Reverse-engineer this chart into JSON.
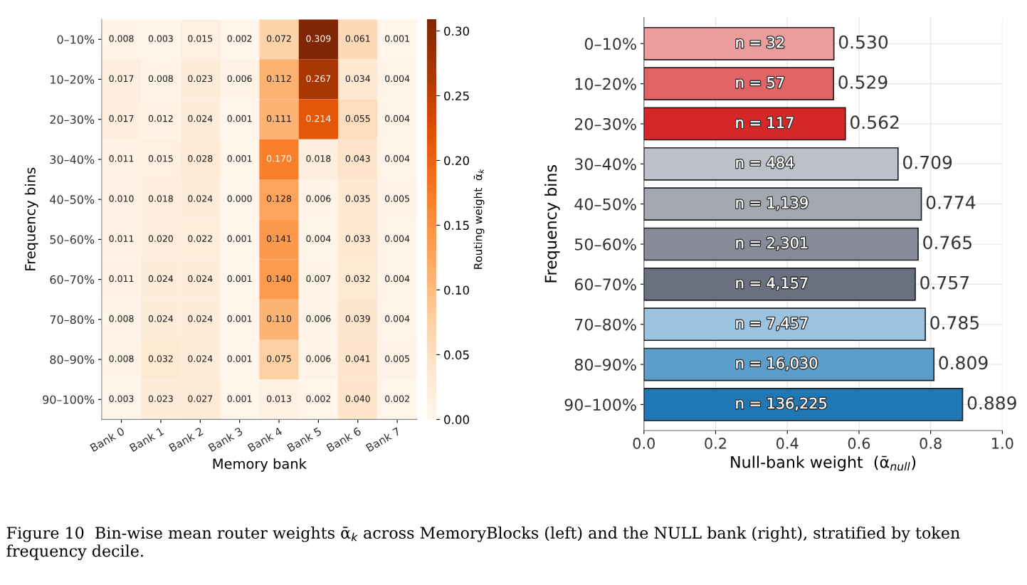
{
  "chart_data": [
    {
      "type": "heatmap",
      "xlabel": "Memory bank",
      "ylabel": "Frequency bins",
      "clabel": "Routing weight  ᾱ$_{k}$",
      "categories": [
        "Bank 0",
        "Bank 1",
        "Bank 2",
        "Bank 3",
        "Bank 4",
        "Bank 5",
        "Bank 6",
        "Bank 7"
      ],
      "y_categories": [
        "0–10%",
        "10–20%",
        "20–30%",
        "30–40%",
        "40–50%",
        "50–60%",
        "60–70%",
        "70–80%",
        "80–90%",
        "90–100%"
      ],
      "cells": [
        [
          0.008,
          0.003,
          0.015,
          0.002,
          0.072,
          0.309,
          0.061,
          0.001
        ],
        [
          0.017,
          0.008,
          0.023,
          0.006,
          0.112,
          0.267,
          0.034,
          0.004
        ],
        [
          0.017,
          0.012,
          0.024,
          0.001,
          0.111,
          0.214,
          0.055,
          0.004
        ],
        [
          0.011,
          0.015,
          0.028,
          0.001,
          0.17,
          0.018,
          0.043,
          0.004
        ],
        [
          0.01,
          0.018,
          0.024,
          0.0,
          0.128,
          0.006,
          0.035,
          0.005
        ],
        [
          0.011,
          0.02,
          0.022,
          0.001,
          0.141,
          0.004,
          0.033,
          0.004
        ],
        [
          0.011,
          0.024,
          0.024,
          0.001,
          0.14,
          0.007,
          0.032,
          0.004
        ],
        [
          0.008,
          0.024,
          0.024,
          0.001,
          0.11,
          0.006,
          0.039,
          0.004
        ],
        [
          0.008,
          0.032,
          0.024,
          0.001,
          0.075,
          0.006,
          0.041,
          0.005
        ],
        [
          0.003,
          0.023,
          0.027,
          0.001,
          0.013,
          0.002,
          0.04,
          0.002
        ]
      ],
      "cell_labels": [
        [
          "0.008",
          "0.003",
          "0.015",
          "0.002",
          "0.072",
          "0.309",
          "0.061",
          "0.001"
        ],
        [
          "0.017",
          "0.008",
          "0.023",
          "0.006",
          "0.112",
          "0.267",
          "0.034",
          "0.004"
        ],
        [
          "0.017",
          "0.012",
          "0.024",
          "0.001",
          "0.111",
          "0.214",
          "0.055",
          "0.004"
        ],
        [
          "0.011",
          "0.015",
          "0.028",
          "0.001",
          "0.170",
          "0.018",
          "0.043",
          "0.004"
        ],
        [
          "0.010",
          "0.018",
          "0.024",
          "0.000",
          "0.128",
          "0.006",
          "0.035",
          "0.005"
        ],
        [
          "0.011",
          "0.020",
          "0.022",
          "0.001",
          "0.141",
          "0.004",
          "0.033",
          "0.004"
        ],
        [
          "0.011",
          "0.024",
          "0.024",
          "0.001",
          "0.140",
          "0.007",
          "0.032",
          "0.004"
        ],
        [
          "0.008",
          "0.024",
          "0.024",
          "0.001",
          "0.110",
          "0.006",
          "0.039",
          "0.004"
        ],
        [
          "0.008",
          "0.032",
          "0.024",
          "0.001",
          "0.075",
          "0.006",
          "0.041",
          "0.005"
        ],
        [
          "0.003",
          "0.023",
          "0.027",
          "0.001",
          "0.013",
          "0.002",
          "0.040",
          "0.002"
        ]
      ],
      "clim": [
        0,
        0.309
      ],
      "cticks": [
        {
          "value": 0,
          "label": "0.00"
        },
        0.05,
        {
          "value": 0.1,
          "label": "0.10"
        },
        0.15,
        {
          "value": 0.2,
          "label": "0.20"
        },
        0.25,
        {
          "value": 0.3,
          "label": "0.30"
        }
      ],
      "annotations": [
        "Figure 10  Bin-wise mean router weights ᾱ$_{k}$ across MemoryBlocks (left) and the NULL bank (right), stratified by token frequency decile."
      ]
    },
    {
      "type": "bar",
      "orientation": "horizontal",
      "xlabel": "Null-bank weight  (ᾱ$_{null}$)",
      "ylabel": "Frequency bins",
      "categories": [
        "0–10%",
        "10–20%",
        "20–30%",
        "30–40%",
        "40–50%",
        "50–60%",
        "60–70%",
        "70–80%",
        "80–90%",
        "90–100%"
      ],
      "values": [
        0.53,
        0.529,
        0.562,
        0.709,
        0.774,
        0.765,
        0.757,
        0.785,
        0.809,
        0.889
      ],
      "colors": [
        "#eb9c9d",
        "#e06465",
        "#d62728",
        "#bcc0c8",
        "#a3a7b0",
        "#878b97",
        "#6b7080",
        "#9bc2df",
        "#5c9dc9",
        "#1f77b4"
      ],
      "value_labels": [
        "0.530",
        "0.529",
        "0.562",
        "0.709",
        "0.774",
        "0.765",
        "0.757",
        "0.785",
        "0.809",
        "0.889"
      ],
      "xlim": [
        0,
        1
      ],
      "xticks": [
        {
          "value": 0,
          "label": "0.0"
        },
        0.2,
        0.4,
        0.6,
        0.8,
        {
          "value": 1,
          "label": "1.0"
        }
      ],
      "grid": true,
      "annotations": [
        {
          "text": "n = 32",
          "y": "0–10%"
        },
        {
          "text": "n = 57",
          "y": "10–20%"
        },
        {
          "text": "n = 117",
          "y": "20–30%"
        },
        {
          "text": "n = 484",
          "y": "30–40%"
        },
        {
          "text": "n = 1,139",
          "y": "40–50%"
        },
        {
          "text": "n = 2,301",
          "y": "50–60%"
        },
        {
          "text": "n = 4,157",
          "y": "60–70%"
        },
        {
          "text": "n = 7,457",
          "y": "70–80%"
        },
        {
          "text": "n = 16,030",
          "y": "80–90%"
        },
        {
          "text": "n = 136,225",
          "y": "90–100%"
        }
      ]
    }
  ]
}
